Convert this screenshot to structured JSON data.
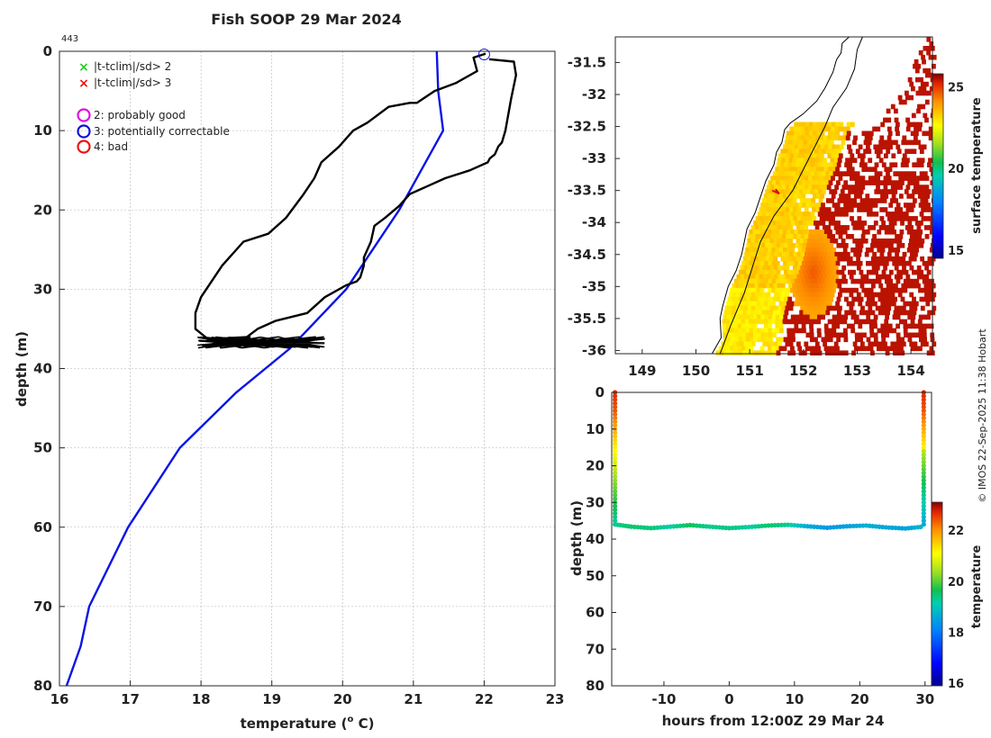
{
  "page": {
    "title": "Fish SOOP 29 Mar 2024",
    "profile_id": "443",
    "credit": "© IMOS 22-Sep-2025 11:38 Hobart"
  },
  "legend": {
    "markers": [
      {
        "symbol": "×",
        "label": "|t-tclim|/sd> 2",
        "color": "#22cc22"
      },
      {
        "symbol": "×",
        "label": "|t-tclim|/sd> 3",
        "color": "#ee1111"
      }
    ],
    "qc_flags": [
      {
        "label": "2: probably good",
        "color": "#dd11dd"
      },
      {
        "label": "3: potentially correctable",
        "color": "#1111dd"
      },
      {
        "label": "4: bad",
        "color": "#ee1111"
      }
    ]
  },
  "colors": {
    "profile": "#000000",
    "climatology": "#0a14e6",
    "land": "#ffffff",
    "coast": "#000000",
    "grid": "#b4b4b4"
  },
  "chart_data": [
    {
      "type": "line",
      "name": "profile",
      "xlabel": "temperature (° C)",
      "xlabel_parts": [
        "temperature (",
        "o",
        " C)"
      ],
      "ylabel": "depth (m)",
      "xlim": [
        16,
        23
      ],
      "ylim": [
        80,
        0
      ],
      "xticks": [
        16,
        17,
        18,
        19,
        20,
        21,
        22,
        23
      ],
      "yticks": [
        0,
        10,
        20,
        30,
        40,
        50,
        60,
        70,
        80
      ],
      "grid": true,
      "series": [
        {
          "name": "climatology",
          "x": [
            21.33,
            21.35,
            21.42,
            20.8,
            20.05,
            19.25,
            18.5,
            17.7,
            16.97,
            16.42,
            16.3,
            16.1
          ],
          "y": [
            0,
            5,
            10,
            20,
            30,
            37.5,
            43,
            50,
            60,
            70,
            75,
            80
          ]
        },
        {
          "name": "profile-down",
          "x": [
            22.07,
            22.42,
            22.45,
            22.38,
            22.3,
            22.25,
            22.2,
            22.15,
            22.08,
            22.05,
            21.8,
            21.45,
            21.2,
            20.95,
            20.8,
            20.6,
            20.45,
            20.4,
            20.3,
            20.3,
            20.25,
            20.2,
            20.05,
            19.75,
            19.5,
            19.05,
            18.8,
            18.65
          ],
          "y": [
            1.0,
            1.3,
            3.0,
            6.0,
            10.0,
            11.5,
            12.0,
            13.0,
            13.5,
            14.0,
            15.0,
            16.0,
            17.0,
            18.0,
            19.5,
            21.0,
            22.0,
            24.0,
            26.0,
            27.0,
            28.5,
            29.0,
            29.5,
            31.0,
            33.0,
            34.0,
            35.0,
            36.0
          ]
        },
        {
          "name": "profile-up",
          "x": [
            18.7,
            18.1,
            17.92,
            17.92,
            18.0,
            18.15,
            18.3,
            18.4,
            18.6,
            18.95,
            19.2,
            19.45,
            19.6,
            19.7,
            19.95,
            20.15,
            20.35,
            20.65,
            20.95,
            21.05,
            21.3,
            21.6,
            21.9,
            21.85,
            22.02
          ],
          "y": [
            36.0,
            36.3,
            35.0,
            33.0,
            31.0,
            29.0,
            27.0,
            26.0,
            24.0,
            23.0,
            21.0,
            18.0,
            16.0,
            14.0,
            12.0,
            10.0,
            9.0,
            7.0,
            6.5,
            6.5,
            5.0,
            4.0,
            2.5,
            0.8,
            0.3
          ]
        }
      ],
      "bottom_cluster": {
        "x_range": [
          17.95,
          19.75
        ],
        "y_range": [
          36.0,
          37.4
        ]
      },
      "flag_marker": {
        "x": 22.0,
        "y": 0.4,
        "label": "potentially correctable"
      }
    },
    {
      "type": "heatmap",
      "name": "surface-temperature-map",
      "xlim": [
        148.5,
        154.4
      ],
      "ylim": [
        -36.05,
        -31.1
      ],
      "xticks": [
        149,
        150,
        151,
        152,
        153,
        154
      ],
      "yticks": [
        -31.5,
        -32,
        -32.5,
        -33,
        -33.5,
        -34,
        -34.5,
        -35,
        -35.5,
        -36
      ],
      "colorbar": {
        "label": "surface temperature",
        "range": [
          14.5,
          25.8
        ],
        "ticks": [
          15,
          20,
          25
        ]
      },
      "coast_lon": [
        150.3,
        150.47,
        150.45,
        150.5,
        150.6,
        150.75,
        150.85,
        150.9,
        150.95,
        151.1,
        151.2,
        151.3,
        151.45,
        151.5,
        151.6,
        151.65,
        151.75,
        152.0,
        152.25,
        152.4,
        152.55,
        152.6,
        152.62,
        152.7,
        152.72,
        152.85
      ],
      "coast_lat": [
        -36.05,
        -35.8,
        -35.5,
        -35.3,
        -35.0,
        -34.75,
        -34.5,
        -34.3,
        -34.1,
        -33.85,
        -33.6,
        -33.35,
        -33.1,
        -32.9,
        -32.75,
        -32.55,
        -32.45,
        -32.3,
        -32.1,
        -31.9,
        -31.65,
        -31.5,
        -31.45,
        -31.35,
        -31.2,
        -31.1
      ],
      "shelf_lon": [
        150.45,
        150.65,
        150.9,
        151.05,
        151.2,
        151.45,
        151.8,
        152.1,
        152.4,
        152.55,
        152.8,
        152.95,
        153.0,
        153.1
      ],
      "shelf_lat": [
        -36.05,
        -35.6,
        -35.1,
        -34.7,
        -34.3,
        -33.9,
        -33.5,
        -33.0,
        -32.5,
        -32.2,
        -31.9,
        -31.6,
        -31.3,
        -31.1
      ],
      "ship_track": {
        "lon": [
          151.48,
          151.55,
          151.42
        ],
        "lat": [
          -33.48,
          -33.55,
          -33.5
        ]
      }
    },
    {
      "type": "scatter",
      "name": "time-depth-section",
      "xlabel": "hours from 12:00Z 29 Mar 24",
      "ylabel": "depth (m)",
      "xlim": [
        -18,
        31
      ],
      "ylim": [
        80,
        0
      ],
      "xticks": [
        -10,
        0,
        10,
        20,
        30
      ],
      "xtick_labels": [
        "-10",
        "0",
        "10",
        "20",
        "30"
      ],
      "yticks": [
        0,
        10,
        20,
        30,
        40,
        50,
        60,
        70,
        80
      ],
      "colorbar": {
        "label": "temperature",
        "range": [
          15.9,
          23.1
        ],
        "ticks": [
          16,
          18,
          20,
          22
        ]
      },
      "down_cast": {
        "x": -17.5,
        "depth_step": 1.0,
        "max_depth": 36
      },
      "up_cast": {
        "x": 29.8,
        "depth_step": 1.0,
        "max_depth": 36
      },
      "bottom": {
        "x": [
          -17.5,
          -15,
          -12,
          -9,
          -6,
          -3,
          0,
          3,
          6,
          9,
          12,
          15,
          18,
          21,
          24,
          27,
          29.8
        ],
        "depth": [
          36.0,
          36.6,
          37.0,
          36.6,
          36.2,
          36.6,
          37.0,
          36.7,
          36.3,
          36.1,
          36.5,
          36.9,
          36.5,
          36.3,
          36.8,
          37.1,
          36.6
        ],
        "temp": [
          19.3,
          19.5,
          19.4,
          19.2,
          19.6,
          19.3,
          19.4,
          19.2,
          19.5,
          19.3,
          18.6,
          18.4,
          18.5,
          18.7,
          18.6,
          18.5,
          18.8
        ]
      }
    }
  ]
}
